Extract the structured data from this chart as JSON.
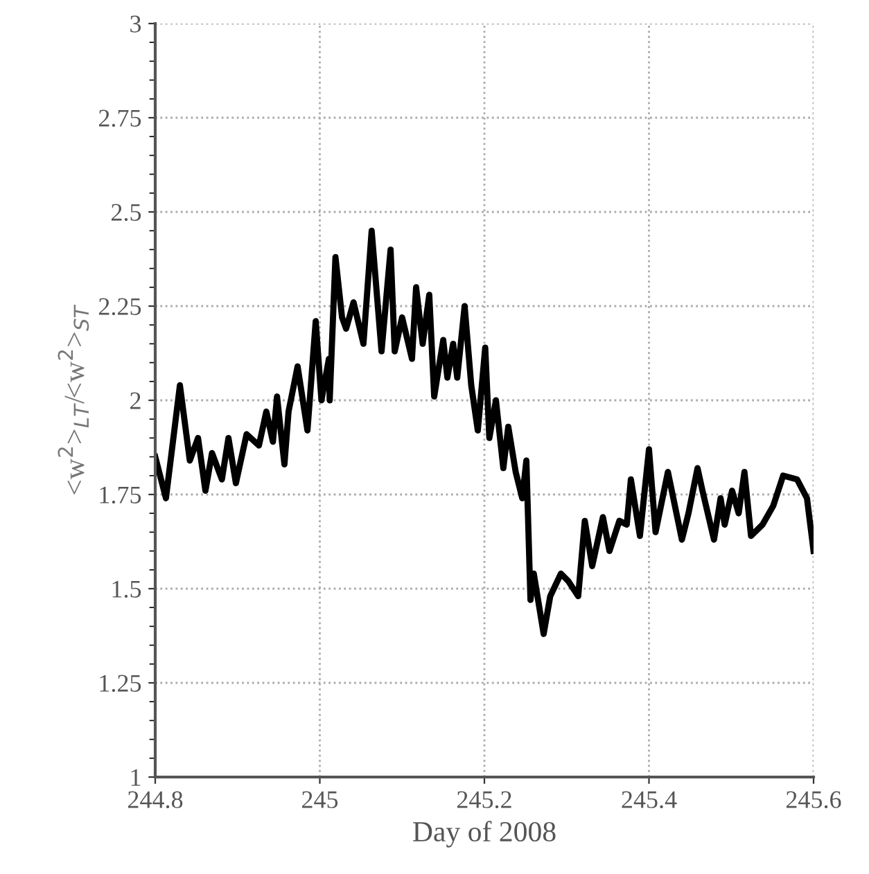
{
  "chart_data": {
    "type": "line",
    "xlabel": "Day of 2008",
    "ylabel": "<w$^{2}$>$_{LT}$/<w$^{2}$>$_{ST}$",
    "xlim": [
      244.8,
      245.6
    ],
    "xticks": [
      244.8,
      245,
      245.2,
      245.4,
      245.6
    ],
    "ylim": [
      1,
      3
    ],
    "yticks": [
      1,
      1.25,
      1.5,
      1.75,
      2,
      2.25,
      2.5,
      2.75,
      3
    ],
    "grid": true,
    "marker": "none",
    "line_style": "solid",
    "series": [
      {
        "color": "#000000",
        "x": [
          244.8,
          244.813,
          244.83,
          244.842,
          244.852,
          244.861,
          244.869,
          244.881,
          244.889,
          244.898,
          244.911,
          244.926,
          244.935,
          244.943,
          244.948,
          244.957,
          244.962,
          244.973,
          244.985,
          244.995,
          245.002,
          245.011,
          245.012,
          245.019,
          245.027,
          245.032,
          245.041,
          245.053,
          245.063,
          245.075,
          245.086,
          245.091,
          245.1,
          245.112,
          245.117,
          245.125,
          245.133,
          245.139,
          245.15,
          245.155,
          245.162,
          245.167,
          245.176,
          245.184,
          245.192,
          245.201,
          245.206,
          245.214,
          245.223,
          245.229,
          245.238,
          245.246,
          245.251,
          245.256,
          245.26,
          245.272,
          245.28,
          245.293,
          245.302,
          245.314,
          245.322,
          245.331,
          245.344,
          245.352,
          245.364,
          245.373,
          245.378,
          245.389,
          245.4,
          245.408,
          245.423,
          245.44,
          245.448,
          245.459,
          245.465,
          245.479,
          245.487,
          245.492,
          245.501,
          245.509,
          245.516,
          245.524,
          245.538,
          245.551,
          245.563,
          245.58,
          245.592,
          245.6
        ],
        "values": [
          1.85,
          1.74,
          2.04,
          1.84,
          1.9,
          1.76,
          1.86,
          1.79,
          1.9,
          1.78,
          1.91,
          1.88,
          1.97,
          1.89,
          2.01,
          1.83,
          1.97,
          2.09,
          1.92,
          2.21,
          2.0,
          2.11,
          2.0,
          2.38,
          2.22,
          2.19,
          2.26,
          2.15,
          2.45,
          2.13,
          2.4,
          2.13,
          2.22,
          2.11,
          2.3,
          2.15,
          2.28,
          2.01,
          2.16,
          2.06,
          2.15,
          2.06,
          2.25,
          2.04,
          1.92,
          2.14,
          1.9,
          2.0,
          1.82,
          1.93,
          1.81,
          1.74,
          1.84,
          1.47,
          1.54,
          1.38,
          1.48,
          1.54,
          1.52,
          1.48,
          1.68,
          1.56,
          1.69,
          1.6,
          1.68,
          1.67,
          1.79,
          1.64,
          1.87,
          1.65,
          1.81,
          1.63,
          1.7,
          1.82,
          1.76,
          1.63,
          1.74,
          1.67,
          1.76,
          1.7,
          1.81,
          1.64,
          1.67,
          1.72,
          1.8,
          1.79,
          1.74,
          1.6
        ]
      }
    ]
  }
}
